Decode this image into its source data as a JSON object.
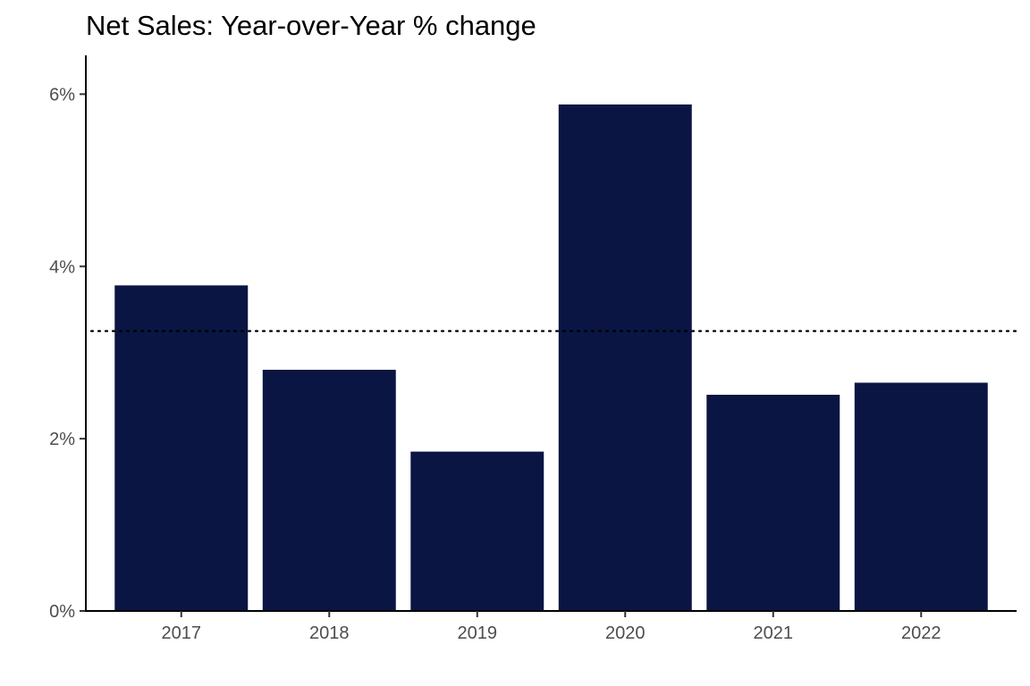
{
  "chart_data": {
    "type": "bar",
    "title": "Net Sales: Year-over-Year % change",
    "xlabel": "",
    "ylabel": "",
    "categories": [
      "2017",
      "2018",
      "2019",
      "2020",
      "2021",
      "2022"
    ],
    "values": [
      3.78,
      2.8,
      1.85,
      5.88,
      2.51,
      2.65
    ],
    "value_unit": "%",
    "ylim": [
      0,
      6.45
    ],
    "yticks": [
      0,
      2,
      4,
      6
    ],
    "ytick_labels": [
      "0%",
      "2%",
      "4%",
      "6%"
    ],
    "reference_line": {
      "value": 3.25,
      "style": "dotted",
      "color": "#000000"
    },
    "bar_color": "#0a1543",
    "grid": false,
    "legend": "none"
  }
}
